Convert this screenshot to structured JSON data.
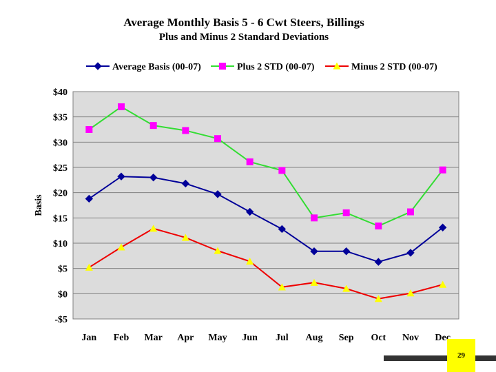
{
  "chart_data": {
    "type": "line",
    "title": "Average Monthly Basis 5 - 6 Cwt Steers, Billings",
    "subtitle": "Plus and Minus 2 Standard Deviations",
    "xlabel": "",
    "ylabel": "Basis",
    "categories": [
      "Jan",
      "Feb",
      "Mar",
      "Apr",
      "May",
      "Jun",
      "Jul",
      "Aug",
      "Sep",
      "Oct",
      "Nov",
      "Dec"
    ],
    "ylim": [
      -5,
      40
    ],
    "yticks": [
      40,
      35,
      30,
      25,
      20,
      15,
      10,
      5,
      0,
      -5
    ],
    "ytick_labels": [
      "$40",
      "$35",
      "$30",
      "$25",
      "$20",
      "$15",
      "$10",
      "$5",
      "$0",
      "-$5"
    ],
    "grid": true,
    "legend_position": "top",
    "series": [
      {
        "name": "Average Basis (00-07)",
        "color": "#000099",
        "marker": "diamond",
        "values": [
          18.8,
          23.2,
          23.0,
          21.8,
          19.7,
          16.2,
          12.8,
          8.4,
          8.4,
          6.3,
          8.1,
          13.1
        ]
      },
      {
        "name": "Plus 2 STD (00-07)",
        "color": "#33dd33",
        "marker_color": "#ff00ff",
        "marker": "square",
        "values": [
          32.5,
          37.0,
          33.3,
          32.3,
          30.7,
          26.1,
          24.4,
          15.0,
          16.0,
          13.4,
          16.2,
          24.5
        ]
      },
      {
        "name": "Minus 2 STD (00-07)",
        "color": "#ee0000",
        "marker_color": "#ffff00",
        "marker": "triangle",
        "values": [
          5.2,
          9.2,
          12.9,
          11.1,
          8.5,
          6.4,
          1.3,
          2.2,
          1.0,
          -1.0,
          0.1,
          1.8
        ]
      }
    ]
  },
  "page": {
    "number": "29"
  }
}
